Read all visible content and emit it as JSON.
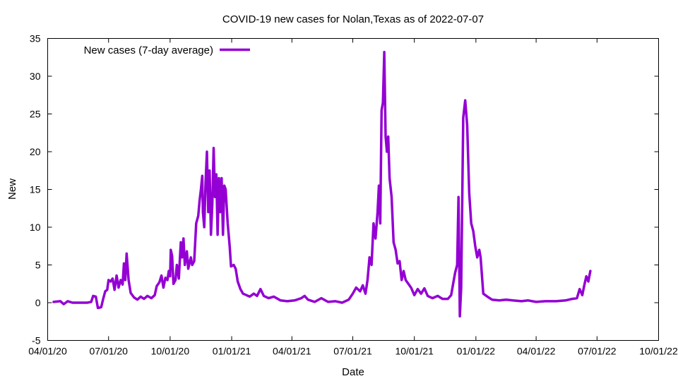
{
  "chart_data": {
    "type": "line",
    "title": "COVID-19 new cases for Nolan,Texas as of 2022-07-07",
    "xlabel": "Date",
    "ylabel": "New",
    "ylim": [
      -5,
      35
    ],
    "xlim": [
      "2020-04-01",
      "2022-10-01"
    ],
    "yticks": [
      -5,
      0,
      5,
      10,
      15,
      20,
      25,
      30,
      35
    ],
    "ytick_labels": [
      "-5",
      "0",
      "5",
      "10",
      "15",
      "20",
      "25",
      "30",
      "35"
    ],
    "xticks": [
      "2020-04-01",
      "2020-07-01",
      "2020-10-01",
      "2021-01-01",
      "2021-04-01",
      "2021-07-01",
      "2021-10-01",
      "2022-01-01",
      "2022-04-01",
      "2022-07-01",
      "2022-10-01"
    ],
    "xtick_labels": [
      "04/01/20",
      "07/01/20",
      "10/01/20",
      "01/01/21",
      "04/01/21",
      "07/01/21",
      "10/01/21",
      "01/01/22",
      "04/01/22",
      "07/01/22",
      "10/01/22"
    ],
    "grid": false,
    "legend_position": "top-left",
    "series": [
      {
        "name": "New cases (7-day average)",
        "color": "#9400d3",
        "points": [
          [
            "2020-04-10",
            0.1
          ],
          [
            "2020-04-20",
            0.2
          ],
          [
            "2020-04-25",
            -0.2
          ],
          [
            "2020-05-01",
            0.2
          ],
          [
            "2020-05-08",
            0.0
          ],
          [
            "2020-05-20",
            0.0
          ],
          [
            "2020-05-30",
            0.0
          ],
          [
            "2020-06-05",
            0.1
          ],
          [
            "2020-06-08",
            0.9
          ],
          [
            "2020-06-12",
            0.8
          ],
          [
            "2020-06-15",
            -0.7
          ],
          [
            "2020-06-20",
            -0.6
          ],
          [
            "2020-06-23",
            0.5
          ],
          [
            "2020-06-26",
            1.5
          ],
          [
            "2020-06-29",
            1.7
          ],
          [
            "2020-07-01",
            3.0
          ],
          [
            "2020-07-04",
            2.8
          ],
          [
            "2020-07-07",
            3.2
          ],
          [
            "2020-07-10",
            1.7
          ],
          [
            "2020-07-13",
            3.6
          ],
          [
            "2020-07-16",
            2.0
          ],
          [
            "2020-07-19",
            3.0
          ],
          [
            "2020-07-22",
            2.4
          ],
          [
            "2020-07-24",
            5.2
          ],
          [
            "2020-07-26",
            3.0
          ],
          [
            "2020-07-28",
            6.5
          ],
          [
            "2020-07-31",
            3.0
          ],
          [
            "2020-08-03",
            1.3
          ],
          [
            "2020-08-08",
            0.7
          ],
          [
            "2020-08-13",
            0.4
          ],
          [
            "2020-08-18",
            0.8
          ],
          [
            "2020-08-23",
            0.5
          ],
          [
            "2020-08-28",
            0.9
          ],
          [
            "2020-09-03",
            0.6
          ],
          [
            "2020-09-08",
            1.0
          ],
          [
            "2020-09-11",
            2.2
          ],
          [
            "2020-09-15",
            2.7
          ],
          [
            "2020-09-18",
            3.6
          ],
          [
            "2020-09-21",
            2.0
          ],
          [
            "2020-09-24",
            3.3
          ],
          [
            "2020-09-27",
            3.0
          ],
          [
            "2020-09-29",
            4.2
          ],
          [
            "2020-10-01",
            3.5
          ],
          [
            "2020-10-02",
            7.0
          ],
          [
            "2020-10-04",
            6.2
          ],
          [
            "2020-10-06",
            2.5
          ],
          [
            "2020-10-09",
            3.0
          ],
          [
            "2020-10-11",
            5.0
          ],
          [
            "2020-10-14",
            3.2
          ],
          [
            "2020-10-17",
            8.0
          ],
          [
            "2020-10-19",
            6.0
          ],
          [
            "2020-10-21",
            8.5
          ],
          [
            "2020-10-23",
            5.0
          ],
          [
            "2020-10-26",
            6.8
          ],
          [
            "2020-10-28",
            4.5
          ],
          [
            "2020-11-01",
            6.0
          ],
          [
            "2020-11-03",
            5.0
          ],
          [
            "2020-11-06",
            5.5
          ],
          [
            "2020-11-09",
            10.5
          ],
          [
            "2020-11-12",
            11.5
          ],
          [
            "2020-11-14",
            13.5
          ],
          [
            "2020-11-16",
            15.0
          ],
          [
            "2020-11-18",
            16.8
          ],
          [
            "2020-11-19",
            12.0
          ],
          [
            "2020-11-21",
            10.0
          ],
          [
            "2020-11-23",
            16.0
          ],
          [
            "2020-11-25",
            20.0
          ],
          [
            "2020-11-27",
            12.0
          ],
          [
            "2020-11-29",
            17.5
          ],
          [
            "2020-12-01",
            9.0
          ],
          [
            "2020-12-03",
            13.0
          ],
          [
            "2020-12-05",
            20.5
          ],
          [
            "2020-12-07",
            14.0
          ],
          [
            "2020-12-09",
            17.0
          ],
          [
            "2020-12-11",
            9.0
          ],
          [
            "2020-12-13",
            16.5
          ],
          [
            "2020-12-15",
            12.0
          ],
          [
            "2020-12-17",
            16.5
          ],
          [
            "2020-12-19",
            9.0
          ],
          [
            "2020-12-21",
            15.5
          ],
          [
            "2020-12-23",
            15.0
          ],
          [
            "2020-12-26",
            10.5
          ],
          [
            "2020-12-29",
            7.5
          ],
          [
            "2020-12-31",
            4.8
          ],
          [
            "2021-01-04",
            5.0
          ],
          [
            "2021-01-07",
            4.5
          ],
          [
            "2021-01-10",
            2.8
          ],
          [
            "2021-01-14",
            1.8
          ],
          [
            "2021-01-18",
            1.2
          ],
          [
            "2021-01-23",
            1.0
          ],
          [
            "2021-01-28",
            0.8
          ],
          [
            "2021-02-03",
            1.2
          ],
          [
            "2021-02-08",
            0.9
          ],
          [
            "2021-02-13",
            1.8
          ],
          [
            "2021-02-18",
            0.9
          ],
          [
            "2021-02-25",
            0.6
          ],
          [
            "2021-03-05",
            0.8
          ],
          [
            "2021-03-15",
            0.3
          ],
          [
            "2021-03-25",
            0.2
          ],
          [
            "2021-04-05",
            0.3
          ],
          [
            "2021-04-15",
            0.6
          ],
          [
            "2021-04-20",
            0.9
          ],
          [
            "2021-04-25",
            0.4
          ],
          [
            "2021-05-05",
            0.1
          ],
          [
            "2021-05-15",
            0.6
          ],
          [
            "2021-05-25",
            0.1
          ],
          [
            "2021-06-05",
            0.2
          ],
          [
            "2021-06-15",
            0.0
          ],
          [
            "2021-06-25",
            0.4
          ],
          [
            "2021-07-01",
            1.2
          ],
          [
            "2021-07-06",
            2.0
          ],
          [
            "2021-07-12",
            1.5
          ],
          [
            "2021-07-16",
            2.3
          ],
          [
            "2021-07-20",
            1.2
          ],
          [
            "2021-07-23",
            3.0
          ],
          [
            "2021-07-26",
            6.0
          ],
          [
            "2021-07-29",
            5.0
          ],
          [
            "2021-08-01",
            10.5
          ],
          [
            "2021-08-04",
            8.5
          ],
          [
            "2021-08-07",
            12.0
          ],
          [
            "2021-08-09",
            15.5
          ],
          [
            "2021-08-11",
            10.5
          ],
          [
            "2021-08-13",
            25.5
          ],
          [
            "2021-08-15",
            26.5
          ],
          [
            "2021-08-17",
            33.2
          ],
          [
            "2021-08-19",
            22.0
          ],
          [
            "2021-08-21",
            20.0
          ],
          [
            "2021-08-23",
            22.0
          ],
          [
            "2021-08-25",
            16.5
          ],
          [
            "2021-08-28",
            14.0
          ],
          [
            "2021-08-31",
            8.0
          ],
          [
            "2021-09-03",
            7.0
          ],
          [
            "2021-09-06",
            5.2
          ],
          [
            "2021-09-09",
            5.5
          ],
          [
            "2021-09-12",
            3.0
          ],
          [
            "2021-09-15",
            4.2
          ],
          [
            "2021-09-18",
            3.0
          ],
          [
            "2021-09-22",
            2.5
          ],
          [
            "2021-09-26",
            2.0
          ],
          [
            "2021-10-01",
            1.0
          ],
          [
            "2021-10-06",
            1.8
          ],
          [
            "2021-10-11",
            1.2
          ],
          [
            "2021-10-16",
            1.9
          ],
          [
            "2021-10-21",
            0.9
          ],
          [
            "2021-10-28",
            0.6
          ],
          [
            "2021-11-05",
            0.9
          ],
          [
            "2021-11-12",
            0.5
          ],
          [
            "2021-11-20",
            0.5
          ],
          [
            "2021-11-25",
            1.0
          ],
          [
            "2021-11-28",
            2.5
          ],
          [
            "2021-12-01",
            4.0
          ],
          [
            "2021-12-04",
            5.0
          ],
          [
            "2021-12-06",
            14.0
          ],
          [
            "2021-12-08",
            -1.8
          ],
          [
            "2021-12-10",
            2.0
          ],
          [
            "2021-12-13",
            24.5
          ],
          [
            "2021-12-16",
            26.8
          ],
          [
            "2021-12-19",
            23.5
          ],
          [
            "2021-12-22",
            14.5
          ],
          [
            "2021-12-25",
            10.5
          ],
          [
            "2021-12-28",
            9.5
          ],
          [
            "2021-12-31",
            7.5
          ],
          [
            "2022-01-03",
            6.0
          ],
          [
            "2022-01-06",
            7.0
          ],
          [
            "2022-01-08",
            6.0
          ],
          [
            "2022-01-12",
            1.2
          ],
          [
            "2022-01-18",
            0.8
          ],
          [
            "2022-01-25",
            0.4
          ],
          [
            "2022-02-05",
            0.3
          ],
          [
            "2022-02-15",
            0.4
          ],
          [
            "2022-02-25",
            0.3
          ],
          [
            "2022-03-10",
            0.2
          ],
          [
            "2022-03-20",
            0.3
          ],
          [
            "2022-04-01",
            0.1
          ],
          [
            "2022-04-15",
            0.2
          ],
          [
            "2022-05-01",
            0.2
          ],
          [
            "2022-05-15",
            0.3
          ],
          [
            "2022-05-25",
            0.5
          ],
          [
            "2022-06-01",
            0.6
          ],
          [
            "2022-06-05",
            1.8
          ],
          [
            "2022-06-09",
            1.0
          ],
          [
            "2022-06-12",
            2.3
          ],
          [
            "2022-06-15",
            3.5
          ],
          [
            "2022-06-18",
            2.8
          ],
          [
            "2022-06-21",
            4.2
          ]
        ]
      }
    ]
  }
}
